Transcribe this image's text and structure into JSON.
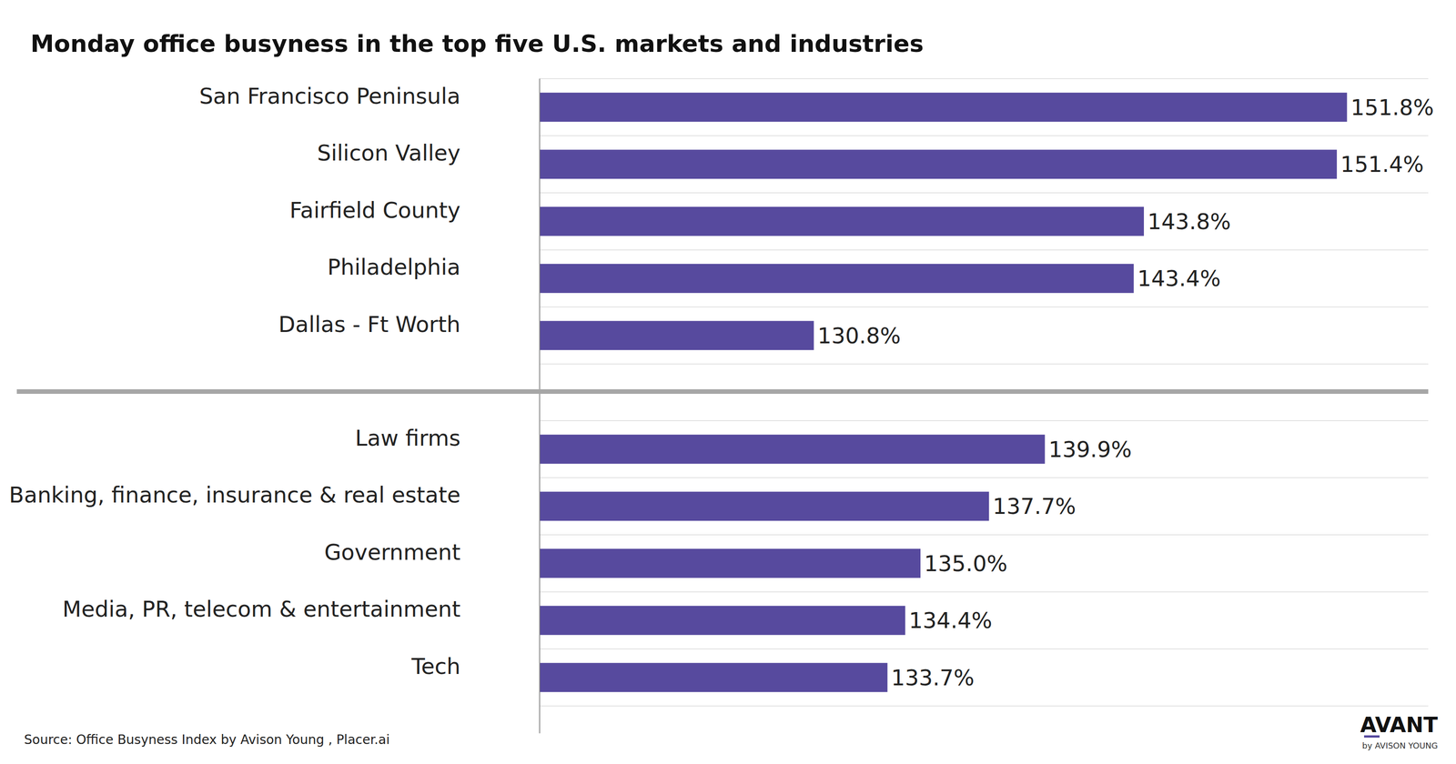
{
  "chart_data": [
    {
      "type": "bar",
      "title": "Monday office busyness in the top five U.S. markets and industries",
      "orientation": "horizontal",
      "categories": [
        "San Francisco Peninsula",
        "Silicon Valley",
        "Fairfield County",
        "Philadelphia",
        "Dallas - Ft Worth"
      ],
      "values": [
        151.8,
        151.4,
        143.8,
        143.4,
        130.8
      ],
      "value_labels": [
        "151.8%",
        "151.4%",
        "143.8%",
        "143.4%",
        "130.8%"
      ],
      "color": "#574a9e",
      "xlim": [
        120,
        155
      ],
      "data_labels": true,
      "tick_labels": false,
      "grid": true
    },
    {
      "type": "bar",
      "orientation": "horizontal",
      "categories": [
        "Law firms",
        "Banking, finance, insurance & real estate",
        "Government",
        "Media, PR, telecom & entertainment",
        "Tech"
      ],
      "values": [
        139.9,
        137.7,
        135.0,
        134.4,
        133.7
      ],
      "value_labels": [
        "139.9%",
        "137.7%",
        "135.0%",
        "134.4%",
        "133.7%"
      ],
      "color": "#574a9e",
      "xlim": [
        120,
        155
      ],
      "data_labels": true,
      "tick_labels": false,
      "grid": true
    }
  ],
  "source": "Source: Office Busyness Index by Avison Young , Placer.ai",
  "brand": "AVANT",
  "brand_sub": "by AVISON YOUNG"
}
